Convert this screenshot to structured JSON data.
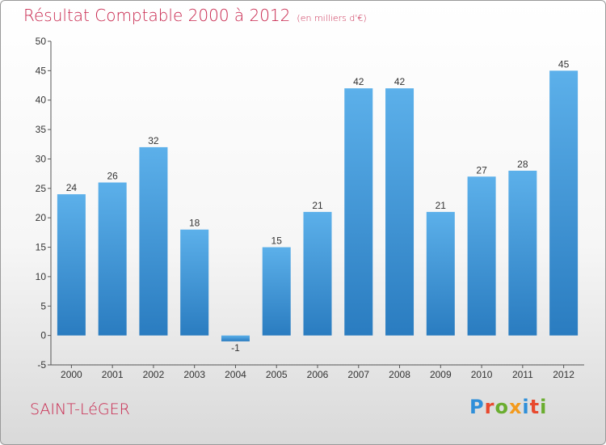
{
  "title": "Résultat Comptable 2000 à 2012",
  "subtitle": "(en milliers d'€)",
  "town": "SAINT-LéGER",
  "logo": "Proxiti",
  "colors": {
    "title": "#c8264d",
    "bar_top": "#5cb0ea",
    "bar_bottom": "#2a7cc0",
    "logo_letters": [
      "#2f8fd9",
      "#e8492e",
      "#6aad2f",
      "#f39a1d",
      "#2f8fd9",
      "#e8492e",
      "#6aad2f"
    ]
  },
  "chart_data": {
    "type": "bar",
    "title": "Résultat Comptable 2000 à 2012",
    "subtitle": "(en milliers d'€)",
    "xlabel": "",
    "ylabel": "",
    "categories": [
      "2000",
      "2001",
      "2002",
      "2003",
      "2004",
      "2005",
      "2006",
      "2007",
      "2008",
      "2009",
      "2010",
      "2011",
      "2012"
    ],
    "values": [
      24,
      26,
      32,
      18,
      -1,
      15,
      21,
      42,
      42,
      21,
      27,
      28,
      45
    ],
    "ylim": [
      -5,
      50
    ],
    "yticks": [
      -5,
      0,
      5,
      10,
      15,
      20,
      25,
      30,
      35,
      40,
      45,
      50
    ],
    "grid": false,
    "legend": "none"
  }
}
